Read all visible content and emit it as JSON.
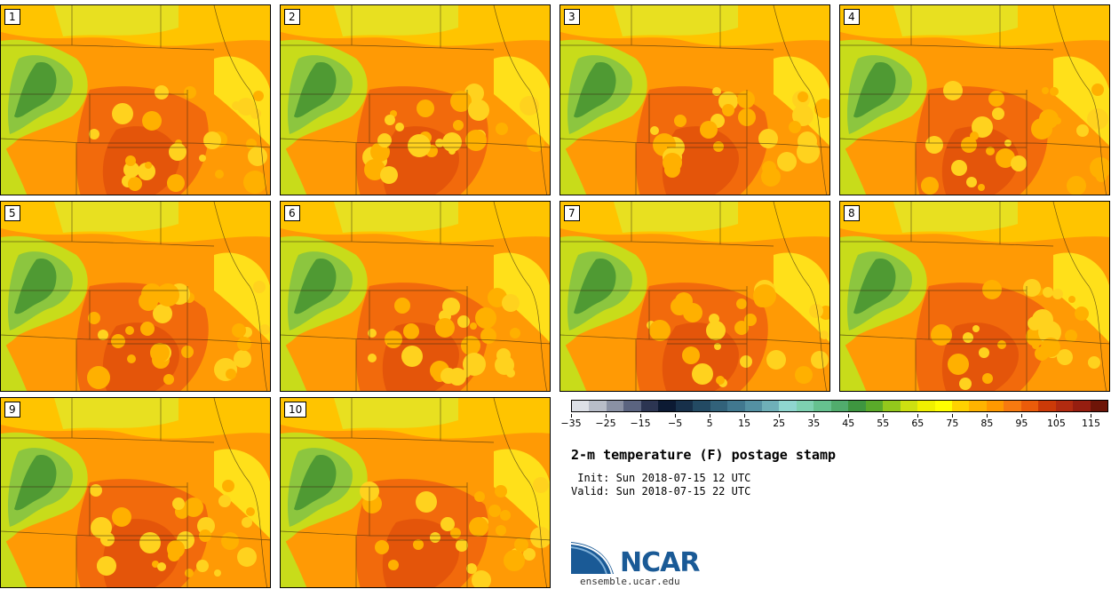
{
  "panels": [
    {
      "label": "1"
    },
    {
      "label": "2"
    },
    {
      "label": "3"
    },
    {
      "label": "4"
    },
    {
      "label": "5"
    },
    {
      "label": "6"
    },
    {
      "label": "7"
    },
    {
      "label": "8"
    },
    {
      "label": "9"
    },
    {
      "label": "10"
    }
  ],
  "colorbar": {
    "colors": [
      "#dde0e6",
      "#b8bdc8",
      "#8a91a4",
      "#5b6480",
      "#2c3552",
      "#0c1a33",
      "#17304a",
      "#234a63",
      "#32627a",
      "#41788f",
      "#5491a3",
      "#6fb0b8",
      "#8fd6cf",
      "#7ed1b1",
      "#66c18f",
      "#51ac6d",
      "#3e9640",
      "#5aaa2a",
      "#93c81c",
      "#cde011",
      "#f0f000",
      "#ffff00",
      "#ffd200",
      "#ffb400",
      "#ff9900",
      "#f77a10",
      "#eb5c0a",
      "#cc3a08",
      "#b22b10",
      "#961e10",
      "#6e1508"
    ],
    "tick_labels": [
      "−35",
      "−25",
      "−15",
      "−5",
      "5",
      "15",
      "25",
      "35",
      "45",
      "55",
      "65",
      "75",
      "85",
      "95",
      "105",
      "115"
    ]
  },
  "title": "2-m temperature (F) postage stamp",
  "init_text": " Init: Sun 2018-07-15 12 UTC",
  "valid_text": "Valid: Sun 2018-07-15 22 UTC",
  "logo": {
    "text": "NCAR",
    "url": "ensemble.ucar.edu"
  }
}
